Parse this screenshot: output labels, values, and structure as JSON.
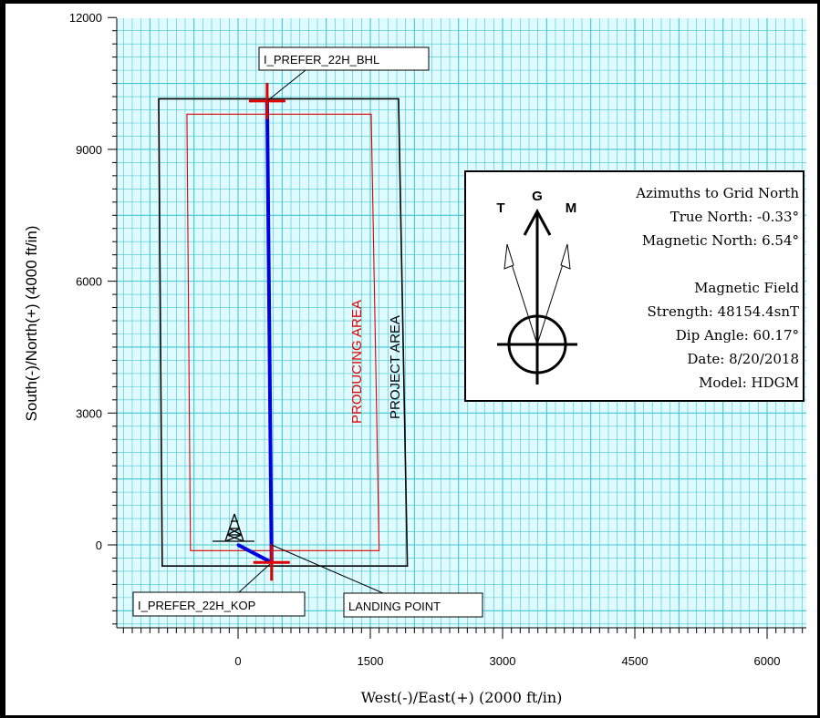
{
  "chart_data": {
    "type": "line",
    "title": "",
    "xlabel": "West(-)/East(+) (2000 ft/in)",
    "ylabel": "South(-)/North(+)  (4000 ft/in)",
    "xlim": [
      -2700,
      6500
    ],
    "ylim": [
      -1900,
      12000
    ],
    "x_ticks": [
      0,
      1500,
      3000,
      4500,
      6000
    ],
    "y_ticks": [
      0,
      3000,
      6000,
      9000,
      12000
    ],
    "x_tick_labels": [
      "0",
      "1500",
      "3000",
      "4500",
      "6000"
    ],
    "y_tick_labels": [
      "0",
      "3000",
      "6000",
      "9000",
      "12000"
    ],
    "grid": true,
    "colors": {
      "grid": "#40c8d0",
      "wellpath": "#0000e0",
      "target": "#e00000",
      "producing_area": "#e00000",
      "project_area": "#000000",
      "background": "#e0fbff"
    },
    "series": [
      {
        "name": "",
        "color": "#0000e0",
        "points": [
          {
            "x": 0,
            "y": 0
          },
          {
            "x": 380,
            "y": -400
          },
          {
            "x": 330,
            "y": 10100
          }
        ]
      }
    ],
    "areas": [
      {
        "label": "PROJECT AREA",
        "color": "#000000",
        "points": [
          {
            "x": -900,
            "y": 10150
          },
          {
            "x": 1820,
            "y": 10150
          },
          {
            "x": 1920,
            "y": -480
          },
          {
            "x": -860,
            "y": -480
          }
        ]
      },
      {
        "label": "PRODUCING AREA",
        "color": "#e00000",
        "points": [
          {
            "x": -580,
            "y": 9800
          },
          {
            "x": 1510,
            "y": 9800
          },
          {
            "x": 1600,
            "y": -130
          },
          {
            "x": -540,
            "y": -130
          }
        ]
      }
    ],
    "targets": [
      {
        "x": 330,
        "y": 10100
      },
      {
        "x": 380,
        "y": -400
      }
    ],
    "annotations": [
      {
        "text": "I_PREFER_22H_BHL",
        "x": 330,
        "y": 10100
      },
      {
        "text": "I_PREFER_22H_KOP",
        "x": 0,
        "y": -380
      },
      {
        "text": "LANDING POINT",
        "x": 380,
        "y": 0
      }
    ]
  },
  "info_box": {
    "north_letters": {
      "t": "T",
      "g": "G",
      "m": "M"
    },
    "lines": [
      "Azimuths to Grid North",
      "True North: -0.33°",
      "Magnetic North: 6.54°",
      "",
      "Magnetic Field",
      "Strength: 48154.4snT",
      "Dip Angle: 60.17°",
      "Date: 8/20/2018",
      "Model: HDGM"
    ]
  }
}
